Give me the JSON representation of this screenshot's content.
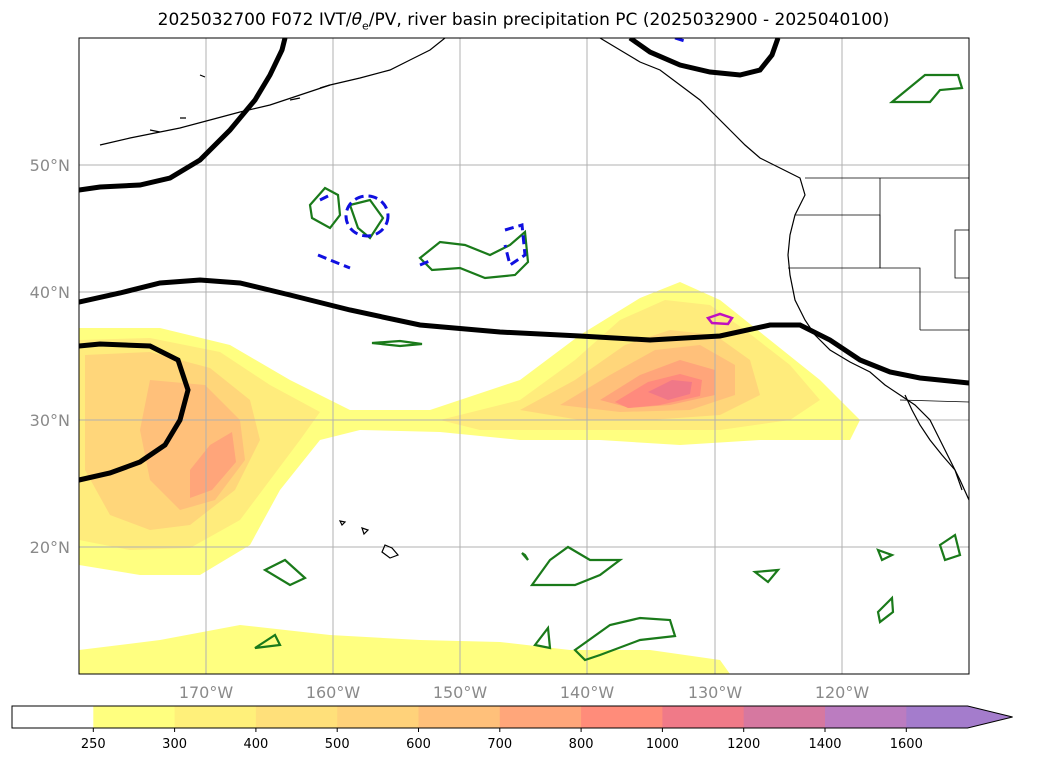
{
  "title": "2025032700 F072 IVT/θe/PV, river basin precipitation PC (2025032900 - 2025040100)",
  "title_parts": {
    "prefix": "2025032700 F072 IVT/",
    "theta": "θ",
    "theta_sub": "e",
    "suffix": "/PV, river basin precipitation PC (2025032900 - 2025040100)"
  },
  "map": {
    "lon_range": [
      -180,
      -110
    ],
    "lat_range": [
      10,
      60
    ],
    "lat_labels": [
      "20°N",
      "30°N",
      "40°N",
      "50°N"
    ],
    "lon_labels": [
      "170°W",
      "160°W",
      "150°W",
      "140°W",
      "130°W",
      "120°W"
    ],
    "gridlines": true
  },
  "colorbar": {
    "levels": [
      "250",
      "300",
      "400",
      "500",
      "600",
      "700",
      "800",
      "1000",
      "1200",
      "1400",
      "1600"
    ],
    "colors": [
      "#ffffff",
      "#ffff7f",
      "#fff07a",
      "#ffe07a",
      "#ffd27a",
      "#ffc07a",
      "#ffa67a",
      "#ff8c7a",
      "#f07a88",
      "#d678a0",
      "#bb7cc0",
      "#a47ccc"
    ],
    "extend": "max"
  },
  "legend_colors": {
    "ivt_shading": "#ffff7f",
    "theta_e_contour": "#000000",
    "pv_positive": "#1a7a1a",
    "pv_negative": "#1010e0",
    "precip_pc": "#c010c0"
  }
}
